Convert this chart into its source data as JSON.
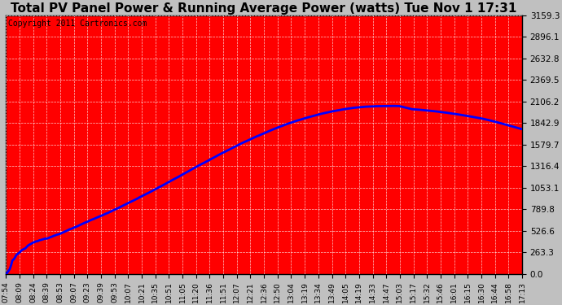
{
  "title": "Total PV Panel Power & Running Average Power (watts) Tue Nov 1 17:31",
  "copyright": "Copyright 2011 Cartronics.com",
  "y_max": 3159.3,
  "y_ticks": [
    0.0,
    263.3,
    526.6,
    789.8,
    1053.1,
    1316.4,
    1579.7,
    1842.9,
    2106.2,
    2369.5,
    2632.8,
    2896.1,
    3159.3
  ],
  "x_labels": [
    "07:54",
    "08:09",
    "08:24",
    "08:39",
    "08:53",
    "09:07",
    "09:23",
    "09:39",
    "09:53",
    "10:07",
    "10:21",
    "10:35",
    "10:51",
    "11:05",
    "11:20",
    "11:36",
    "11:51",
    "12:07",
    "12:21",
    "12:36",
    "12:50",
    "13:04",
    "13:19",
    "13:34",
    "13:49",
    "14:05",
    "14:19",
    "14:33",
    "14:47",
    "15:03",
    "15:17",
    "15:32",
    "15:46",
    "16:01",
    "16:15",
    "16:30",
    "16:44",
    "16:58",
    "17:13"
  ],
  "background_color": "#c0c0c0",
  "plot_bg_color": "#cc0000",
  "fill_color": "#ff0000",
  "line_color": "#0000ff",
  "grid_color": "#ffffff",
  "title_fontsize": 11,
  "copyright_fontsize": 7
}
